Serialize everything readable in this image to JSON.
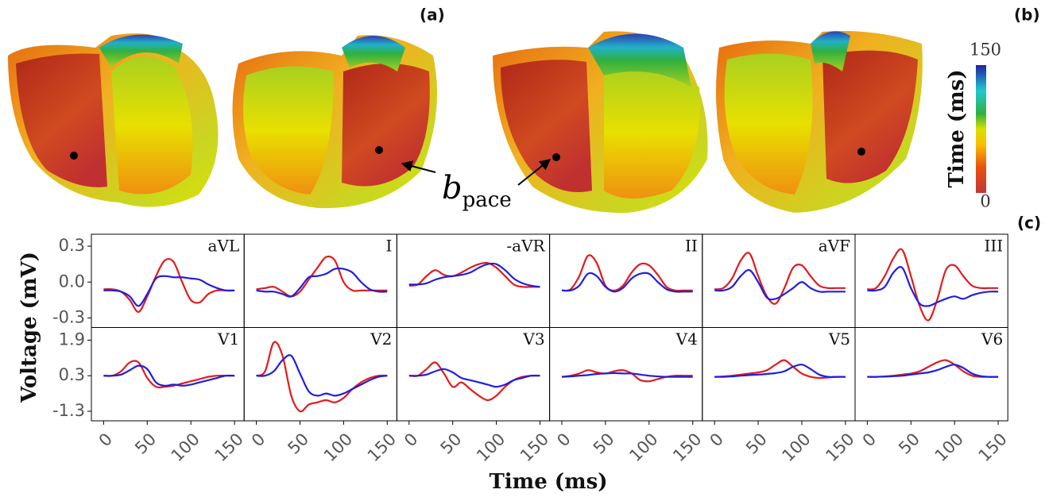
{
  "figure": {
    "panel_a": "(a)",
    "panel_b": "(b)",
    "panel_c": "(c)",
    "annotation": {
      "main": "b",
      "sub": "pace"
    },
    "xlabel": "Time (ms)",
    "ylabel": "Voltage (mV)",
    "colorbar": {
      "label": "Time (ms)",
      "lim": [
        0,
        150
      ],
      "ticks": [
        0,
        150
      ]
    }
  },
  "chart_data": [
    {
      "type": "line",
      "title": "aVL",
      "x": [
        0,
        10,
        20,
        30,
        40,
        50,
        60,
        70,
        80,
        90,
        100,
        110,
        120,
        130,
        140,
        150
      ],
      "xlim": [
        -14,
        161
      ],
      "ylim": [
        -0.38,
        0.4
      ],
      "yticks": [
        0.3,
        {
          "value": 0,
          "label": "0.0"
        },
        -0.3
      ],
      "series": [
        {
          "color": "#e41a1c",
          "values": [
            -0.06,
            -0.06,
            -0.08,
            -0.15,
            -0.25,
            -0.12,
            0.05,
            0.18,
            0.17,
            0.0,
            -0.15,
            -0.17,
            -0.1,
            -0.07,
            -0.07,
            -0.07
          ]
        },
        {
          "color": "#1f1fe0",
          "values": [
            -0.07,
            -0.07,
            -0.08,
            -0.12,
            -0.2,
            -0.1,
            0.03,
            0.05,
            0.04,
            0.04,
            0.03,
            0.02,
            -0.02,
            -0.05,
            -0.07,
            -0.07
          ]
        }
      ]
    },
    {
      "type": "line",
      "title": "I",
      "x": [
        0,
        10,
        20,
        30,
        40,
        50,
        60,
        70,
        80,
        90,
        100,
        110,
        120,
        130,
        140,
        150
      ],
      "xlim": [
        -14,
        161
      ],
      "ylim": [
        -0.38,
        0.4
      ],
      "series": [
        {
          "color": "#e41a1c",
          "values": [
            -0.06,
            -0.05,
            -0.04,
            -0.08,
            -0.12,
            -0.08,
            0.02,
            0.12,
            0.21,
            0.18,
            0.0,
            -0.07,
            -0.07,
            -0.07,
            -0.07,
            -0.07
          ]
        },
        {
          "color": "#1f1fe0",
          "values": [
            -0.07,
            -0.08,
            -0.08,
            -0.1,
            -0.12,
            -0.05,
            0.04,
            0.05,
            0.07,
            0.11,
            0.11,
            0.08,
            0.0,
            -0.06,
            -0.08,
            -0.08
          ]
        }
      ]
    },
    {
      "type": "line",
      "title": "-aVR",
      "x": [
        0,
        10,
        20,
        30,
        40,
        50,
        60,
        70,
        80,
        90,
        100,
        110,
        120,
        130,
        140,
        150
      ],
      "xlim": [
        -14,
        161
      ],
      "ylim": [
        -0.38,
        0.4
      ],
      "series": [
        {
          "color": "#e41a1c",
          "values": [
            -0.03,
            -0.02,
            0.05,
            0.1,
            0.06,
            0.05,
            0.08,
            0.12,
            0.15,
            0.16,
            0.12,
            0.05,
            -0.02,
            -0.04,
            -0.04,
            -0.04
          ]
        },
        {
          "color": "#1f1fe0",
          "values": [
            -0.02,
            -0.02,
            -0.01,
            0.02,
            0.04,
            0.05,
            0.06,
            0.08,
            0.12,
            0.15,
            0.15,
            0.1,
            0.03,
            -0.01,
            -0.03,
            -0.04
          ]
        }
      ]
    },
    {
      "type": "line",
      "title": "II",
      "x": [
        0,
        10,
        20,
        30,
        40,
        50,
        60,
        70,
        80,
        90,
        100,
        110,
        120,
        130,
        140,
        150
      ],
      "xlim": [
        -14,
        161
      ],
      "ylim": [
        -0.38,
        0.4
      ],
      "series": [
        {
          "color": "#e41a1c",
          "values": [
            -0.07,
            -0.06,
            0.05,
            0.22,
            0.16,
            -0.03,
            -0.07,
            -0.03,
            0.08,
            0.15,
            0.14,
            0.06,
            -0.04,
            -0.07,
            -0.07,
            -0.07
          ]
        },
        {
          "color": "#1f1fe0",
          "values": [
            -0.07,
            -0.07,
            -0.03,
            0.07,
            0.05,
            -0.04,
            -0.08,
            -0.05,
            0.03,
            0.07,
            0.07,
            0.0,
            -0.06,
            -0.08,
            -0.08,
            -0.08
          ]
        }
      ]
    },
    {
      "type": "line",
      "title": "aVF",
      "x": [
        0,
        10,
        20,
        30,
        40,
        50,
        60,
        70,
        80,
        90,
        100,
        110,
        120,
        130,
        140,
        150
      ],
      "xlim": [
        -14,
        161
      ],
      "ylim": [
        -0.38,
        0.4
      ],
      "series": [
        {
          "color": "#e41a1c",
          "values": [
            -0.06,
            -0.05,
            0.03,
            0.18,
            0.24,
            0.05,
            -0.12,
            -0.18,
            -0.05,
            0.12,
            0.14,
            0.05,
            -0.03,
            -0.05,
            -0.05,
            -0.05
          ]
        },
        {
          "color": "#1f1fe0",
          "values": [
            -0.07,
            -0.07,
            -0.04,
            0.05,
            0.1,
            0.0,
            -0.13,
            -0.14,
            -0.1,
            -0.05,
            0.0,
            -0.05,
            -0.08,
            -0.08,
            -0.08,
            -0.08
          ]
        }
      ]
    },
    {
      "type": "line",
      "title": "III",
      "x": [
        0,
        10,
        20,
        30,
        40,
        50,
        60,
        70,
        80,
        90,
        100,
        110,
        120,
        130,
        140,
        150
      ],
      "xlim": [
        -14,
        161
      ],
      "ylim": [
        -0.38,
        0.4
      ],
      "series": [
        {
          "color": "#e41a1c",
          "values": [
            -0.06,
            -0.05,
            0.05,
            0.2,
            0.27,
            0.05,
            -0.2,
            -0.32,
            -0.15,
            0.1,
            0.14,
            0.05,
            -0.03,
            -0.05,
            -0.05,
            -0.05
          ]
        },
        {
          "color": "#1f1fe0",
          "values": [
            -0.07,
            -0.07,
            -0.04,
            0.08,
            0.12,
            -0.05,
            -0.18,
            -0.2,
            -0.17,
            -0.14,
            -0.12,
            -0.14,
            -0.11,
            -0.09,
            -0.08,
            -0.08
          ]
        }
      ]
    },
    {
      "type": "line",
      "title": "V1",
      "x": [
        0,
        10,
        20,
        30,
        40,
        50,
        60,
        70,
        80,
        90,
        100,
        110,
        120,
        130,
        140,
        150
      ],
      "xlim": [
        -14,
        161
      ],
      "ylim": [
        -1.73,
        2.47
      ],
      "yticks": [
        1.9,
        0.3,
        -1.3
      ],
      "xticks": [
        0,
        50,
        100,
        150
      ],
      "series": [
        {
          "color": "#e41a1c",
          "values": [
            0.3,
            0.3,
            0.5,
            0.9,
            0.9,
            0.2,
            -0.2,
            -0.2,
            -0.15,
            -0.05,
            0.05,
            0.15,
            0.25,
            0.3,
            0.3,
            0.3
          ]
        },
        {
          "color": "#1f1fe0",
          "values": [
            0.3,
            0.3,
            0.35,
            0.55,
            0.75,
            0.6,
            0.0,
            -0.15,
            -0.1,
            -0.15,
            -0.1,
            0.0,
            0.1,
            0.2,
            0.3,
            0.3
          ]
        }
      ]
    },
    {
      "type": "line",
      "title": "V2",
      "x": [
        0,
        10,
        20,
        30,
        40,
        50,
        60,
        70,
        80,
        90,
        100,
        110,
        120,
        130,
        140,
        150
      ],
      "xlim": [
        -14,
        161
      ],
      "ylim": [
        -1.73,
        2.47
      ],
      "xticks": [
        0,
        50,
        100,
        150
      ],
      "series": [
        {
          "color": "#e41a1c",
          "values": [
            0.3,
            0.5,
            1.8,
            1.2,
            -0.6,
            -1.3,
            -1.0,
            -0.9,
            -0.8,
            -0.9,
            -0.7,
            -0.3,
            0.0,
            0.2,
            0.3,
            0.3
          ]
        },
        {
          "color": "#1f1fe0",
          "values": [
            0.3,
            0.3,
            0.5,
            1.0,
            1.2,
            0.4,
            -0.4,
            -0.6,
            -0.5,
            -0.6,
            -0.5,
            -0.3,
            -0.1,
            0.1,
            0.25,
            0.3
          ]
        }
      ]
    },
    {
      "type": "line",
      "title": "V3",
      "x": [
        0,
        10,
        20,
        30,
        40,
        50,
        60,
        70,
        80,
        90,
        100,
        110,
        120,
        130,
        140,
        150
      ],
      "xlim": [
        -14,
        161
      ],
      "ylim": [
        -1.73,
        2.47
      ],
      "xticks": [
        0,
        50,
        100,
        150
      ],
      "series": [
        {
          "color": "#e41a1c",
          "values": [
            0.3,
            0.3,
            0.6,
            0.9,
            0.4,
            -0.2,
            0.0,
            -0.3,
            -0.6,
            -0.8,
            -0.6,
            -0.2,
            0.1,
            0.25,
            0.3,
            0.3
          ]
        },
        {
          "color": "#1f1fe0",
          "values": [
            0.3,
            0.3,
            0.35,
            0.5,
            0.6,
            0.45,
            0.2,
            0.1,
            0.0,
            -0.1,
            -0.2,
            -0.1,
            0.1,
            0.2,
            0.3,
            0.3
          ]
        }
      ]
    },
    {
      "type": "line",
      "title": "V4",
      "x": [
        0,
        10,
        20,
        30,
        40,
        50,
        60,
        70,
        80,
        90,
        100,
        110,
        120,
        130,
        140,
        150
      ],
      "xlim": [
        -14,
        161
      ],
      "ylim": [
        -1.73,
        2.47
      ],
      "xticks": [
        0,
        50,
        100,
        150
      ],
      "series": [
        {
          "color": "#e41a1c",
          "values": [
            0.25,
            0.3,
            0.4,
            0.55,
            0.45,
            0.4,
            0.5,
            0.55,
            0.4,
            0.1,
            0.05,
            0.15,
            0.25,
            0.3,
            0.3,
            0.3
          ]
        },
        {
          "color": "#1f1fe0",
          "values": [
            0.25,
            0.27,
            0.3,
            0.33,
            0.38,
            0.4,
            0.42,
            0.4,
            0.4,
            0.35,
            0.3,
            0.27,
            0.25,
            0.25,
            0.25,
            0.25
          ]
        }
      ]
    },
    {
      "type": "line",
      "title": "V5",
      "x": [
        0,
        10,
        20,
        30,
        40,
        50,
        60,
        70,
        80,
        90,
        100,
        110,
        120,
        130,
        140,
        150
      ],
      "xlim": [
        -14,
        161
      ],
      "ylim": [
        -1.73,
        2.47
      ],
      "xticks": [
        0,
        50,
        100,
        150
      ],
      "series": [
        {
          "color": "#e41a1c",
          "values": [
            0.25,
            0.27,
            0.3,
            0.35,
            0.4,
            0.45,
            0.55,
            0.8,
            1.0,
            0.7,
            0.4,
            0.25,
            0.2,
            0.22,
            0.25,
            0.25
          ]
        },
        {
          "color": "#1f1fe0",
          "values": [
            0.25,
            0.25,
            0.27,
            0.3,
            0.33,
            0.35,
            0.38,
            0.42,
            0.5,
            0.7,
            0.8,
            0.6,
            0.35,
            0.25,
            0.25,
            0.25
          ]
        }
      ]
    },
    {
      "type": "line",
      "title": "V6",
      "x": [
        0,
        10,
        20,
        30,
        40,
        50,
        60,
        70,
        80,
        90,
        100,
        110,
        120,
        130,
        140,
        150
      ],
      "xlim": [
        -14,
        161
      ],
      "ylim": [
        -1.73,
        2.47
      ],
      "xticks": [
        0,
        50,
        100,
        150
      ],
      "series": [
        {
          "color": "#e41a1c",
          "values": [
            0.25,
            0.25,
            0.27,
            0.3,
            0.35,
            0.4,
            0.5,
            0.7,
            0.9,
            1.0,
            0.8,
            0.5,
            0.3,
            0.25,
            0.25,
            0.25
          ]
        },
        {
          "color": "#1f1fe0",
          "values": [
            0.25,
            0.25,
            0.26,
            0.28,
            0.3,
            0.35,
            0.4,
            0.45,
            0.55,
            0.7,
            0.8,
            0.65,
            0.4,
            0.28,
            0.25,
            0.25
          ]
        }
      ]
    }
  ]
}
